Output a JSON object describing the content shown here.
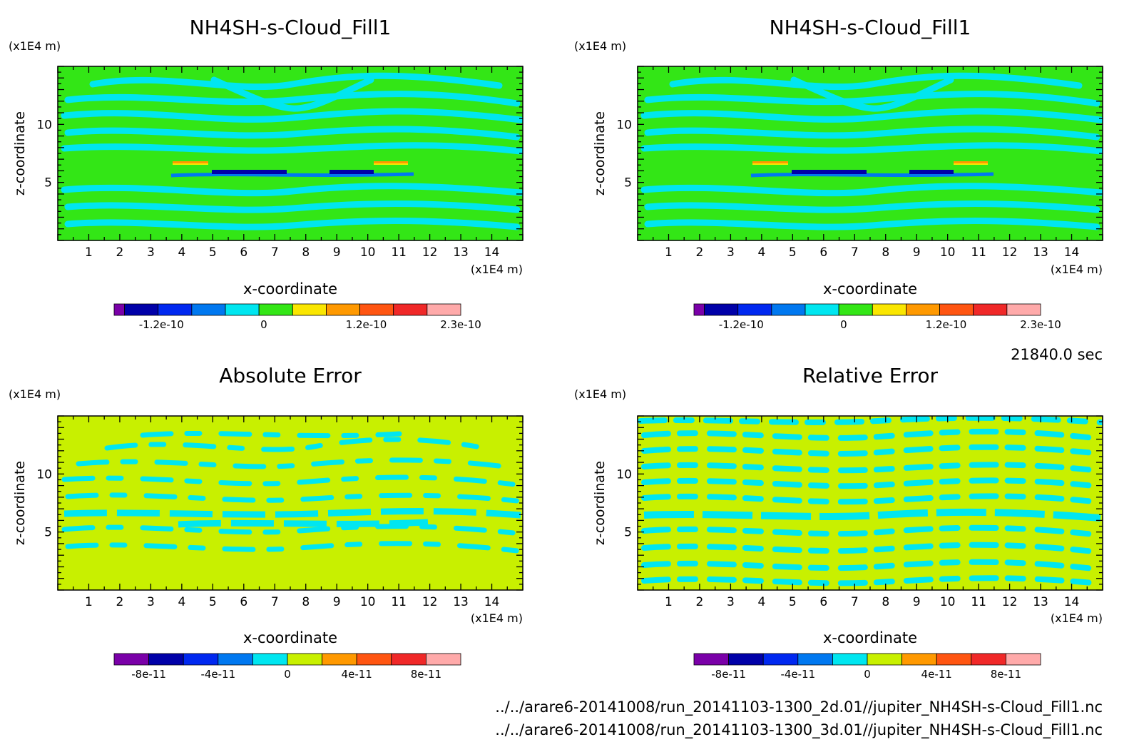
{
  "time_label": "21840.0 sec",
  "file_lines": [
    "../../arare6-20141008/run_20141103-1300_2d.01//jupiter_NH4SH-s-Cloud_Fill1.nc",
    "../../arare6-20141008/run_20141103-1300_3d.01//jupiter_NH4SH-s-Cloud_Fill1.nc"
  ],
  "chart_data": [
    {
      "type": "heatmap",
      "title": "NH4SH-s-Cloud_Fill1",
      "xlabel": "x-coordinate",
      "ylabel": "z-coordinate",
      "x_unit": "(x1E4 m)",
      "y_unit": "(x1E4 m)",
      "xlim": [
        0,
        15
      ],
      "ylim": [
        0,
        15
      ],
      "xticks": [
        "1",
        "2",
        "3",
        "4",
        "5",
        "6",
        "7",
        "8",
        "9",
        "10",
        "11",
        "12",
        "13",
        "14"
      ],
      "yticks": [
        "5",
        "10"
      ],
      "colorbar": {
        "colors": [
          "#7a00a8",
          "#0000a8",
          "#0028f0",
          "#0078f0",
          "#00e6f0",
          "#33e616",
          "#fae600",
          "#ff9900",
          "#ff5511",
          "#f02828",
          "#ffaaaa"
        ],
        "tick_labels": [
          "-1.2e-10",
          "0",
          "1.2e-10",
          "2.3e-10"
        ]
      }
    },
    {
      "type": "heatmap",
      "title": "NH4SH-s-Cloud_Fill1",
      "xlabel": "x-coordinate",
      "ylabel": "z-coordinate",
      "x_unit": "(x1E4 m)",
      "y_unit": "(x1E4 m)",
      "xlim": [
        0,
        15
      ],
      "ylim": [
        0,
        15
      ],
      "xticks": [
        "1",
        "2",
        "3",
        "4",
        "5",
        "6",
        "7",
        "8",
        "9",
        "10",
        "11",
        "12",
        "13",
        "14"
      ],
      "yticks": [
        "5",
        "10"
      ],
      "colorbar": {
        "colors": [
          "#7a00a8",
          "#0000a8",
          "#0028f0",
          "#0078f0",
          "#00e6f0",
          "#33e616",
          "#fae600",
          "#ff9900",
          "#ff5511",
          "#f02828",
          "#ffaaaa"
        ],
        "tick_labels": [
          "-1.2e-10",
          "0",
          "1.2e-10",
          "2.3e-10"
        ]
      }
    },
    {
      "type": "heatmap",
      "title": "Absolute Error",
      "xlabel": "x-coordinate",
      "ylabel": "z-coordinate",
      "x_unit": "(x1E4 m)",
      "y_unit": "(x1E4 m)",
      "xlim": [
        0,
        15
      ],
      "ylim": [
        0,
        15
      ],
      "xticks": [
        "1",
        "2",
        "3",
        "4",
        "5",
        "6",
        "7",
        "8",
        "9",
        "10",
        "11",
        "12",
        "13",
        "14"
      ],
      "yticks": [
        "5",
        "10"
      ],
      "colorbar": {
        "colors": [
          "#7a00a8",
          "#0000a8",
          "#0028f0",
          "#0078f0",
          "#00e6f0",
          "#c8f000",
          "#ff9900",
          "#ff5511",
          "#f02828",
          "#ffaaaa"
        ],
        "tick_labels": [
          "-8e-11",
          "-4e-11",
          "0",
          "4e-11",
          "8e-11"
        ]
      }
    },
    {
      "type": "heatmap",
      "title": "Relative Error",
      "xlabel": "x-coordinate",
      "ylabel": "z-coordinate",
      "x_unit": "(x1E4 m)",
      "y_unit": "(x1E4 m)",
      "xlim": [
        0,
        15
      ],
      "ylim": [
        0,
        15
      ],
      "xticks": [
        "1",
        "2",
        "3",
        "4",
        "5",
        "6",
        "7",
        "8",
        "9",
        "10",
        "11",
        "12",
        "13",
        "14"
      ],
      "yticks": [
        "5",
        "10"
      ],
      "colorbar": {
        "colors": [
          "#7a00a8",
          "#0000a8",
          "#0028f0",
          "#0078f0",
          "#00e6f0",
          "#c8f000",
          "#ff9900",
          "#ff5511",
          "#f02828",
          "#ffaaaa"
        ],
        "tick_labels": [
          "-8e-11",
          "-4e-11",
          "0",
          "4e-11",
          "8e-11"
        ]
      }
    }
  ]
}
